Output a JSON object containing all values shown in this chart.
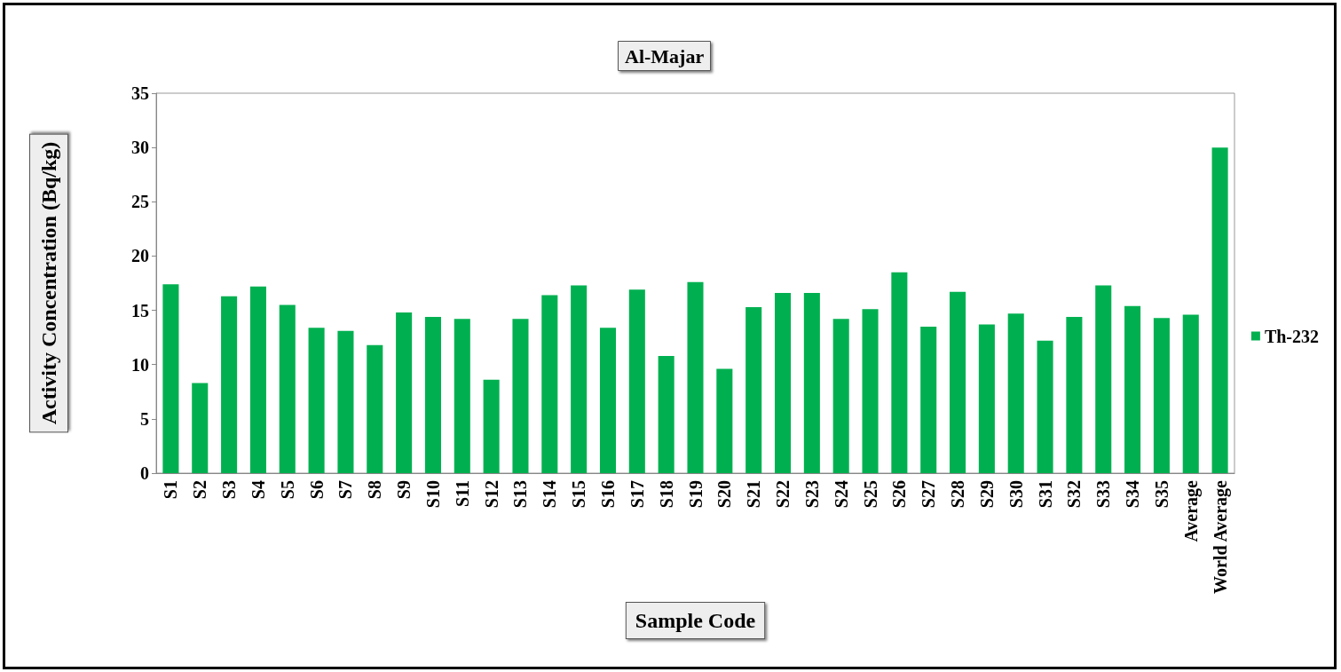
{
  "chart_data": {
    "type": "bar",
    "title": "Al-Majar",
    "xlabel": "Sample Code",
    "ylabel": "Activity Concentration (Bq/kg)",
    "categories": [
      "S1",
      "S2",
      "S3",
      "S4",
      "S5",
      "S6",
      "S7",
      "S8",
      "S9",
      "S10",
      "S11",
      "S12",
      "S13",
      "S14",
      "S15",
      "S16",
      "S17",
      "S18",
      "S19",
      "S20",
      "S21",
      "S22",
      "S23",
      "S24",
      "S25",
      "S26",
      "S27",
      "S28",
      "S29",
      "S30",
      "S31",
      "S32",
      "S33",
      "S34",
      "S35",
      "Average",
      "World Average"
    ],
    "series": [
      {
        "name": "Th-232",
        "color": "#00b050",
        "values": [
          17.4,
          8.3,
          16.3,
          17.2,
          15.5,
          13.4,
          13.1,
          11.8,
          14.8,
          14.4,
          14.2,
          8.6,
          14.2,
          16.4,
          17.3,
          13.4,
          16.9,
          10.8,
          17.6,
          9.6,
          15.3,
          16.6,
          16.6,
          14.2,
          15.1,
          18.5,
          13.5,
          16.7,
          13.7,
          14.7,
          12.2,
          14.4,
          17.3,
          15.4,
          14.3,
          14.6,
          30
        ]
      }
    ],
    "ylim": [
      0,
      35
    ],
    "yticks": [
      0,
      5,
      10,
      15,
      20,
      25,
      30,
      35
    ],
    "grid": false,
    "legend": "right"
  }
}
